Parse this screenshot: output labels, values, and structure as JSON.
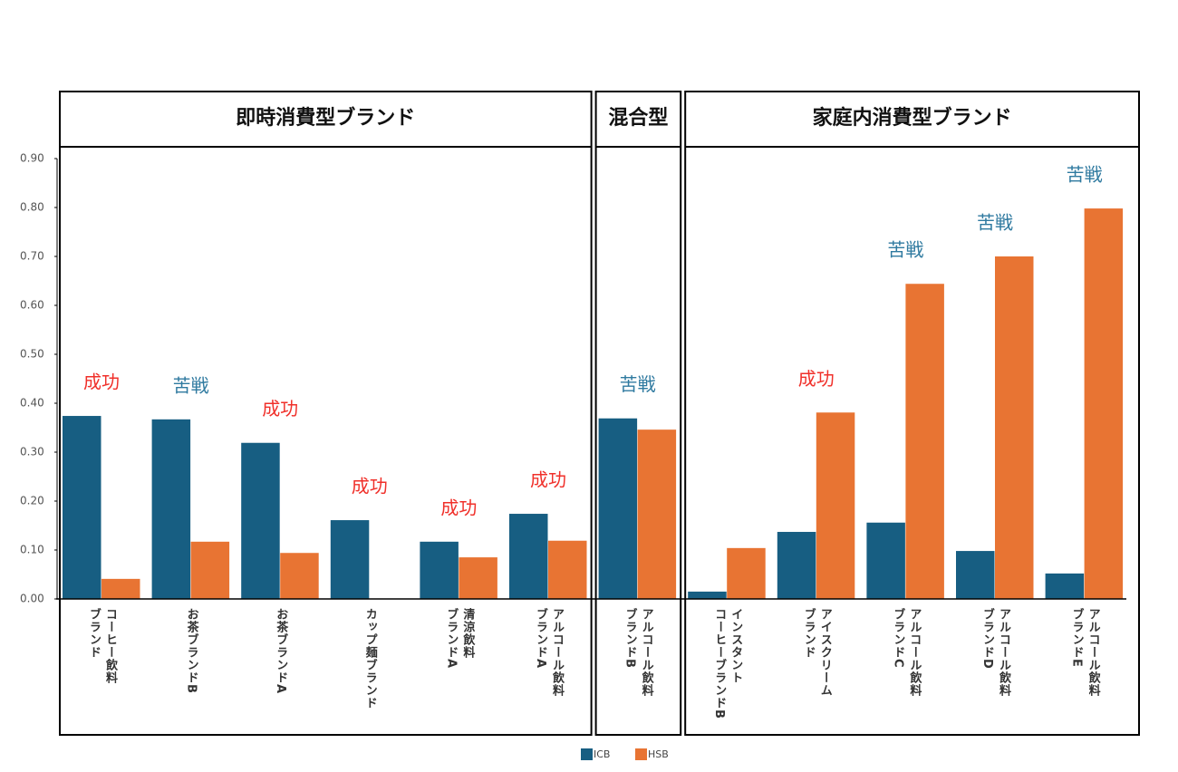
{
  "chart_data": {
    "type": "bar",
    "categories": [
      "コーヒー飲料\nブランド",
      "お茶ブランドB",
      "お茶ブランドA",
      "カップ麺ブランド",
      "清涼飲料\nブランドA",
      "アルコール飲料\nブランドA",
      "アルコール飲料\nブランドB",
      "インスタント\nコーヒーブランドB",
      "アイスクリーム\nブランド",
      "アルコール飲料\nブランドC",
      "アルコール飲料\nブランドD",
      "アルコール飲料\nブランドE"
    ],
    "category_groups": [
      "即時消費型ブランド",
      "即時消費型ブランド",
      "即時消費型ブランド",
      "即時消費型ブランド",
      "即時消費型ブランド",
      "即時消費型ブランド",
      "混合型",
      "家庭内消費型ブランド",
      "家庭内消費型ブランド",
      "家庭内消費型ブランド",
      "家庭内消費型ブランド",
      "家庭内消費型ブランド"
    ],
    "series": [
      {
        "name": "ICB",
        "color": "#175e82",
        "values": [
          0.374,
          0.367,
          0.319,
          0.161,
          0.117,
          0.174,
          0.369,
          0.015,
          0.137,
          0.156,
          0.098,
          0.052
        ]
      },
      {
        "name": "HSB",
        "color": "#e87433",
        "values": [
          0.041,
          0.117,
          0.094,
          0,
          0.085,
          0.119,
          0.346,
          0.104,
          0.381,
          0.644,
          0.7,
          0.798
        ]
      }
    ],
    "annotations": [
      {
        "text": "成功",
        "color": "#f0302a"
      },
      {
        "text": "苦戦",
        "color": "#2f7aa0"
      },
      {
        "text": "成功",
        "color": "#f0302a"
      },
      {
        "text": "成功",
        "color": "#f0302a"
      },
      {
        "text": "成功",
        "color": "#f0302a"
      },
      {
        "text": "成功",
        "color": "#f0302a"
      },
      {
        "text": "苦戦",
        "color": "#2f7aa0"
      },
      null,
      {
        "text": "成功",
        "color": "#f0302a"
      },
      {
        "text": "苦戦",
        "color": "#2f7aa0"
      },
      {
        "text": "苦戦",
        "color": "#2f7aa0"
      },
      {
        "text": "苦戦",
        "color": "#2f7aa0"
      }
    ],
    "ylim": [
      0,
      0.9
    ],
    "yticks": [
      {
        "value": 0,
        "label": "0.00"
      },
      {
        "value": 0.1,
        "label": "0.10"
      },
      {
        "value": 0.2,
        "label": "0.20"
      },
      {
        "value": 0.3,
        "label": "0.30"
      },
      {
        "value": 0.4,
        "label": "0.40"
      },
      {
        "value": 0.5,
        "label": "0.50"
      },
      {
        "value": 0.6,
        "label": "0.60"
      },
      {
        "value": 0.7,
        "label": "0.70"
      },
      {
        "value": 0.8,
        "label": "0.80"
      },
      {
        "value": 0.9,
        "label": "0.90"
      }
    ],
    "grid": false,
    "legend": "bottom"
  }
}
